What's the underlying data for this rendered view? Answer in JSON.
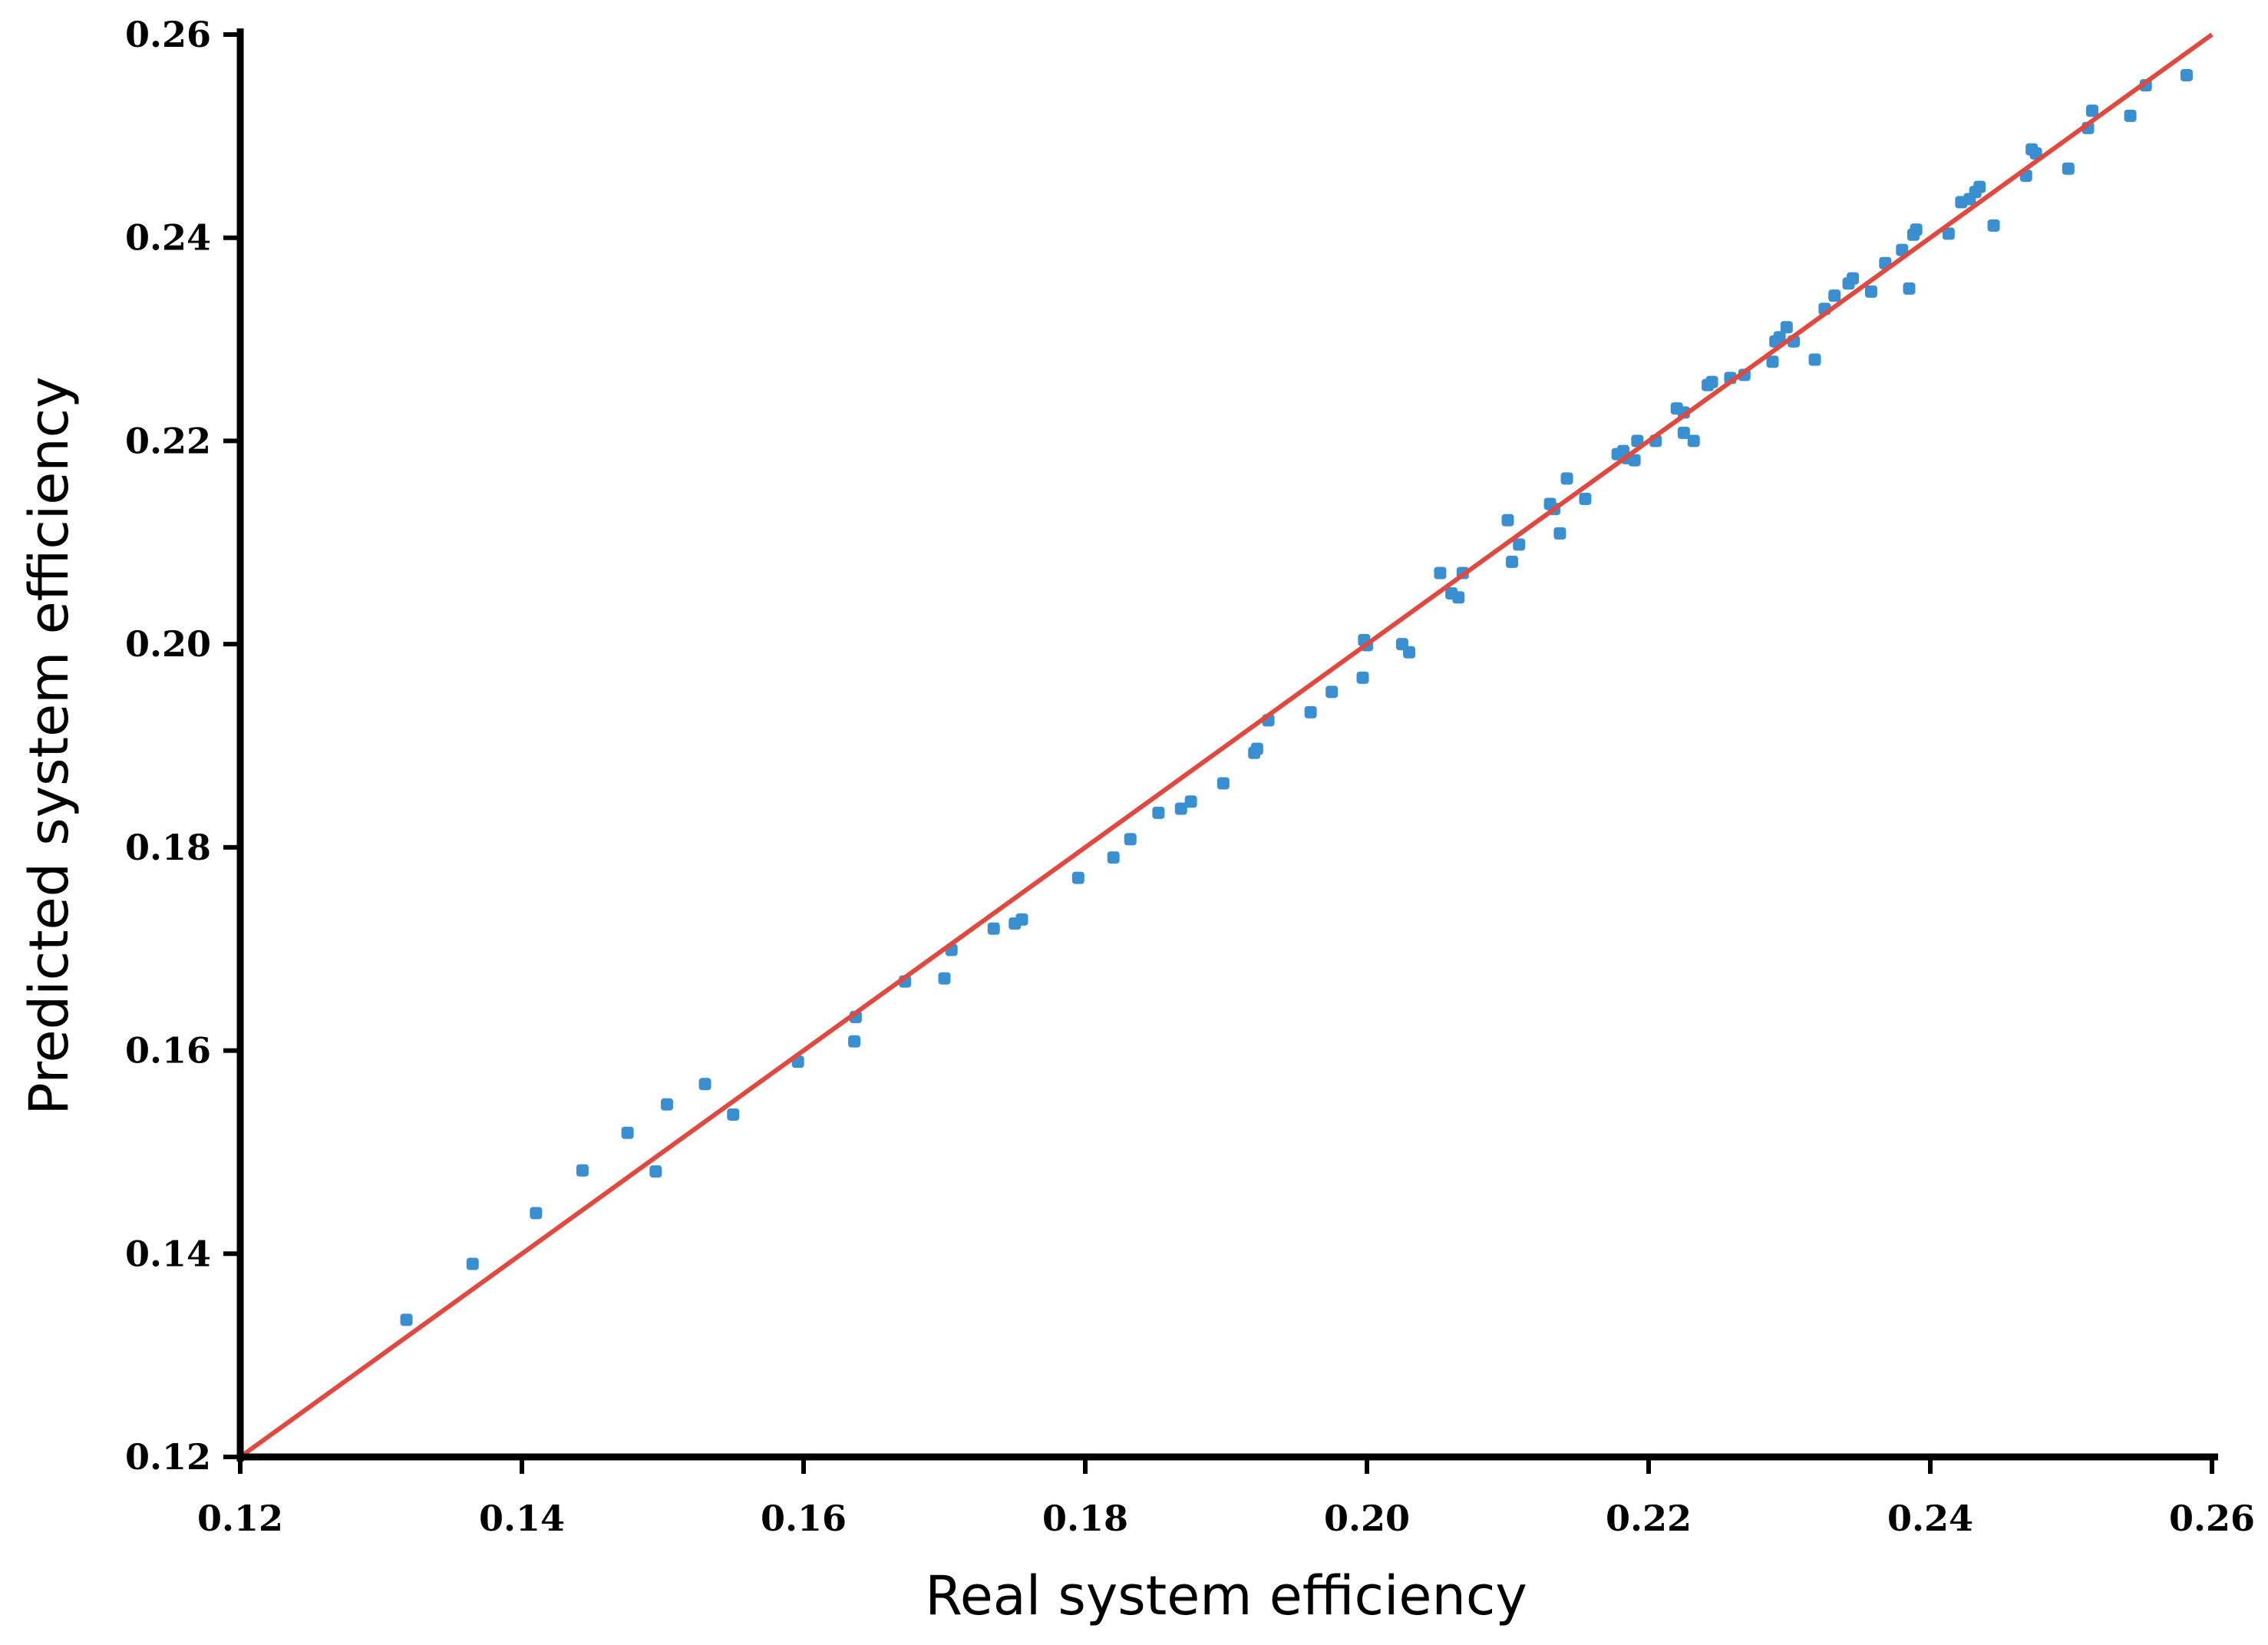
{
  "chart_data": {
    "type": "scatter",
    "title": "",
    "xlabel": "Real system efficiency",
    "ylabel": "Predicted system efficiency",
    "xlim": [
      0.12,
      0.26
    ],
    "ylim": [
      0.12,
      0.26
    ],
    "x_ticks": [
      "0.12",
      "0.14",
      "0.16",
      "0.18",
      "0.20",
      "0.22",
      "0.24",
      "0.26"
    ],
    "y_ticks": [
      "0.12",
      "0.14",
      "0.16",
      "0.18",
      "0.20",
      "0.22",
      "0.24",
      "0.26"
    ],
    "grid": false,
    "legend": "none",
    "point_color": "#3a8fd0",
    "line_color": "#e0493f",
    "reference_line": {
      "x": [
        0.12,
        0.26
      ],
      "y": [
        0.12,
        0.26
      ]
    },
    "points": [
      [
        0.1318,
        0.1335
      ],
      [
        0.1365,
        0.139
      ],
      [
        0.141,
        0.144
      ],
      [
        0.1443,
        0.1482
      ],
      [
        0.1475,
        0.1519
      ],
      [
        0.1495,
        0.1481
      ],
      [
        0.1503,
        0.1547
      ],
      [
        0.153,
        0.1567
      ],
      [
        0.155,
        0.1537
      ],
      [
        0.1596,
        0.1589
      ],
      [
        0.1636,
        0.1609
      ],
      [
        0.1637,
        0.1633
      ],
      [
        0.1672,
        0.1668
      ],
      [
        0.17,
        0.1671
      ],
      [
        0.1705,
        0.1699
      ],
      [
        0.1735,
        0.172
      ],
      [
        0.175,
        0.1725
      ],
      [
        0.1755,
        0.1729
      ],
      [
        0.1795,
        0.177
      ],
      [
        0.182,
        0.179
      ],
      [
        0.1832,
        0.1808
      ],
      [
        0.1852,
        0.1834
      ],
      [
        0.1868,
        0.1838
      ],
      [
        0.1875,
        0.1845
      ],
      [
        0.1898,
        0.1863
      ],
      [
        0.192,
        0.1893
      ],
      [
        0.1922,
        0.1897
      ],
      [
        0.193,
        0.1925
      ],
      [
        0.196,
        0.1933
      ],
      [
        0.1975,
        0.1953
      ],
      [
        0.1997,
        0.1967
      ],
      [
        0.1998,
        0.2004
      ],
      [
        0.2,
        0.1999
      ],
      [
        0.2025,
        0.2
      ],
      [
        0.203,
        0.1992
      ],
      [
        0.2052,
        0.207
      ],
      [
        0.206,
        0.205
      ],
      [
        0.2065,
        0.2046
      ],
      [
        0.2068,
        0.207
      ],
      [
        0.21,
        0.2122
      ],
      [
        0.2103,
        0.2081
      ],
      [
        0.2108,
        0.2098
      ],
      [
        0.213,
        0.2138
      ],
      [
        0.2133,
        0.2133
      ],
      [
        0.2137,
        0.2109
      ],
      [
        0.2142,
        0.2163
      ],
      [
        0.2155,
        0.2143
      ],
      [
        0.2178,
        0.2187
      ],
      [
        0.2182,
        0.219
      ],
      [
        0.2185,
        0.2183
      ],
      [
        0.219,
        0.2181
      ],
      [
        0.2192,
        0.22
      ],
      [
        0.2205,
        0.22
      ],
      [
        0.222,
        0.2232
      ],
      [
        0.2225,
        0.2228
      ],
      [
        0.2225,
        0.2208
      ],
      [
        0.2232,
        0.22
      ],
      [
        0.2242,
        0.2255
      ],
      [
        0.2245,
        0.2258
      ],
      [
        0.2258,
        0.2262
      ],
      [
        0.2268,
        0.2265
      ],
      [
        0.2288,
        0.2278
      ],
      [
        0.229,
        0.2298
      ],
      [
        0.2293,
        0.2302
      ],
      [
        0.2298,
        0.2312
      ],
      [
        0.2303,
        0.2298
      ],
      [
        0.2318,
        0.228
      ],
      [
        0.2325,
        0.233
      ],
      [
        0.2332,
        0.2343
      ],
      [
        0.2342,
        0.2355
      ],
      [
        0.2345,
        0.236
      ],
      [
        0.2358,
        0.2347
      ],
      [
        0.2368,
        0.2375
      ],
      [
        0.238,
        0.2388
      ],
      [
        0.2385,
        0.235
      ],
      [
        0.2388,
        0.2403
      ],
      [
        0.239,
        0.2408
      ],
      [
        0.2413,
        0.2404
      ],
      [
        0.2422,
        0.2435
      ],
      [
        0.2428,
        0.2438
      ],
      [
        0.2432,
        0.2445
      ],
      [
        0.2435,
        0.245
      ],
      [
        0.2445,
        0.2412
      ],
      [
        0.2468,
        0.2461
      ],
      [
        0.2472,
        0.2487
      ],
      [
        0.2475,
        0.2483
      ],
      [
        0.2498,
        0.2468
      ],
      [
        0.2512,
        0.2508
      ],
      [
        0.2515,
        0.2525
      ],
      [
        0.2542,
        0.252
      ],
      [
        0.2553,
        0.255
      ],
      [
        0.2582,
        0.256
      ]
    ]
  }
}
